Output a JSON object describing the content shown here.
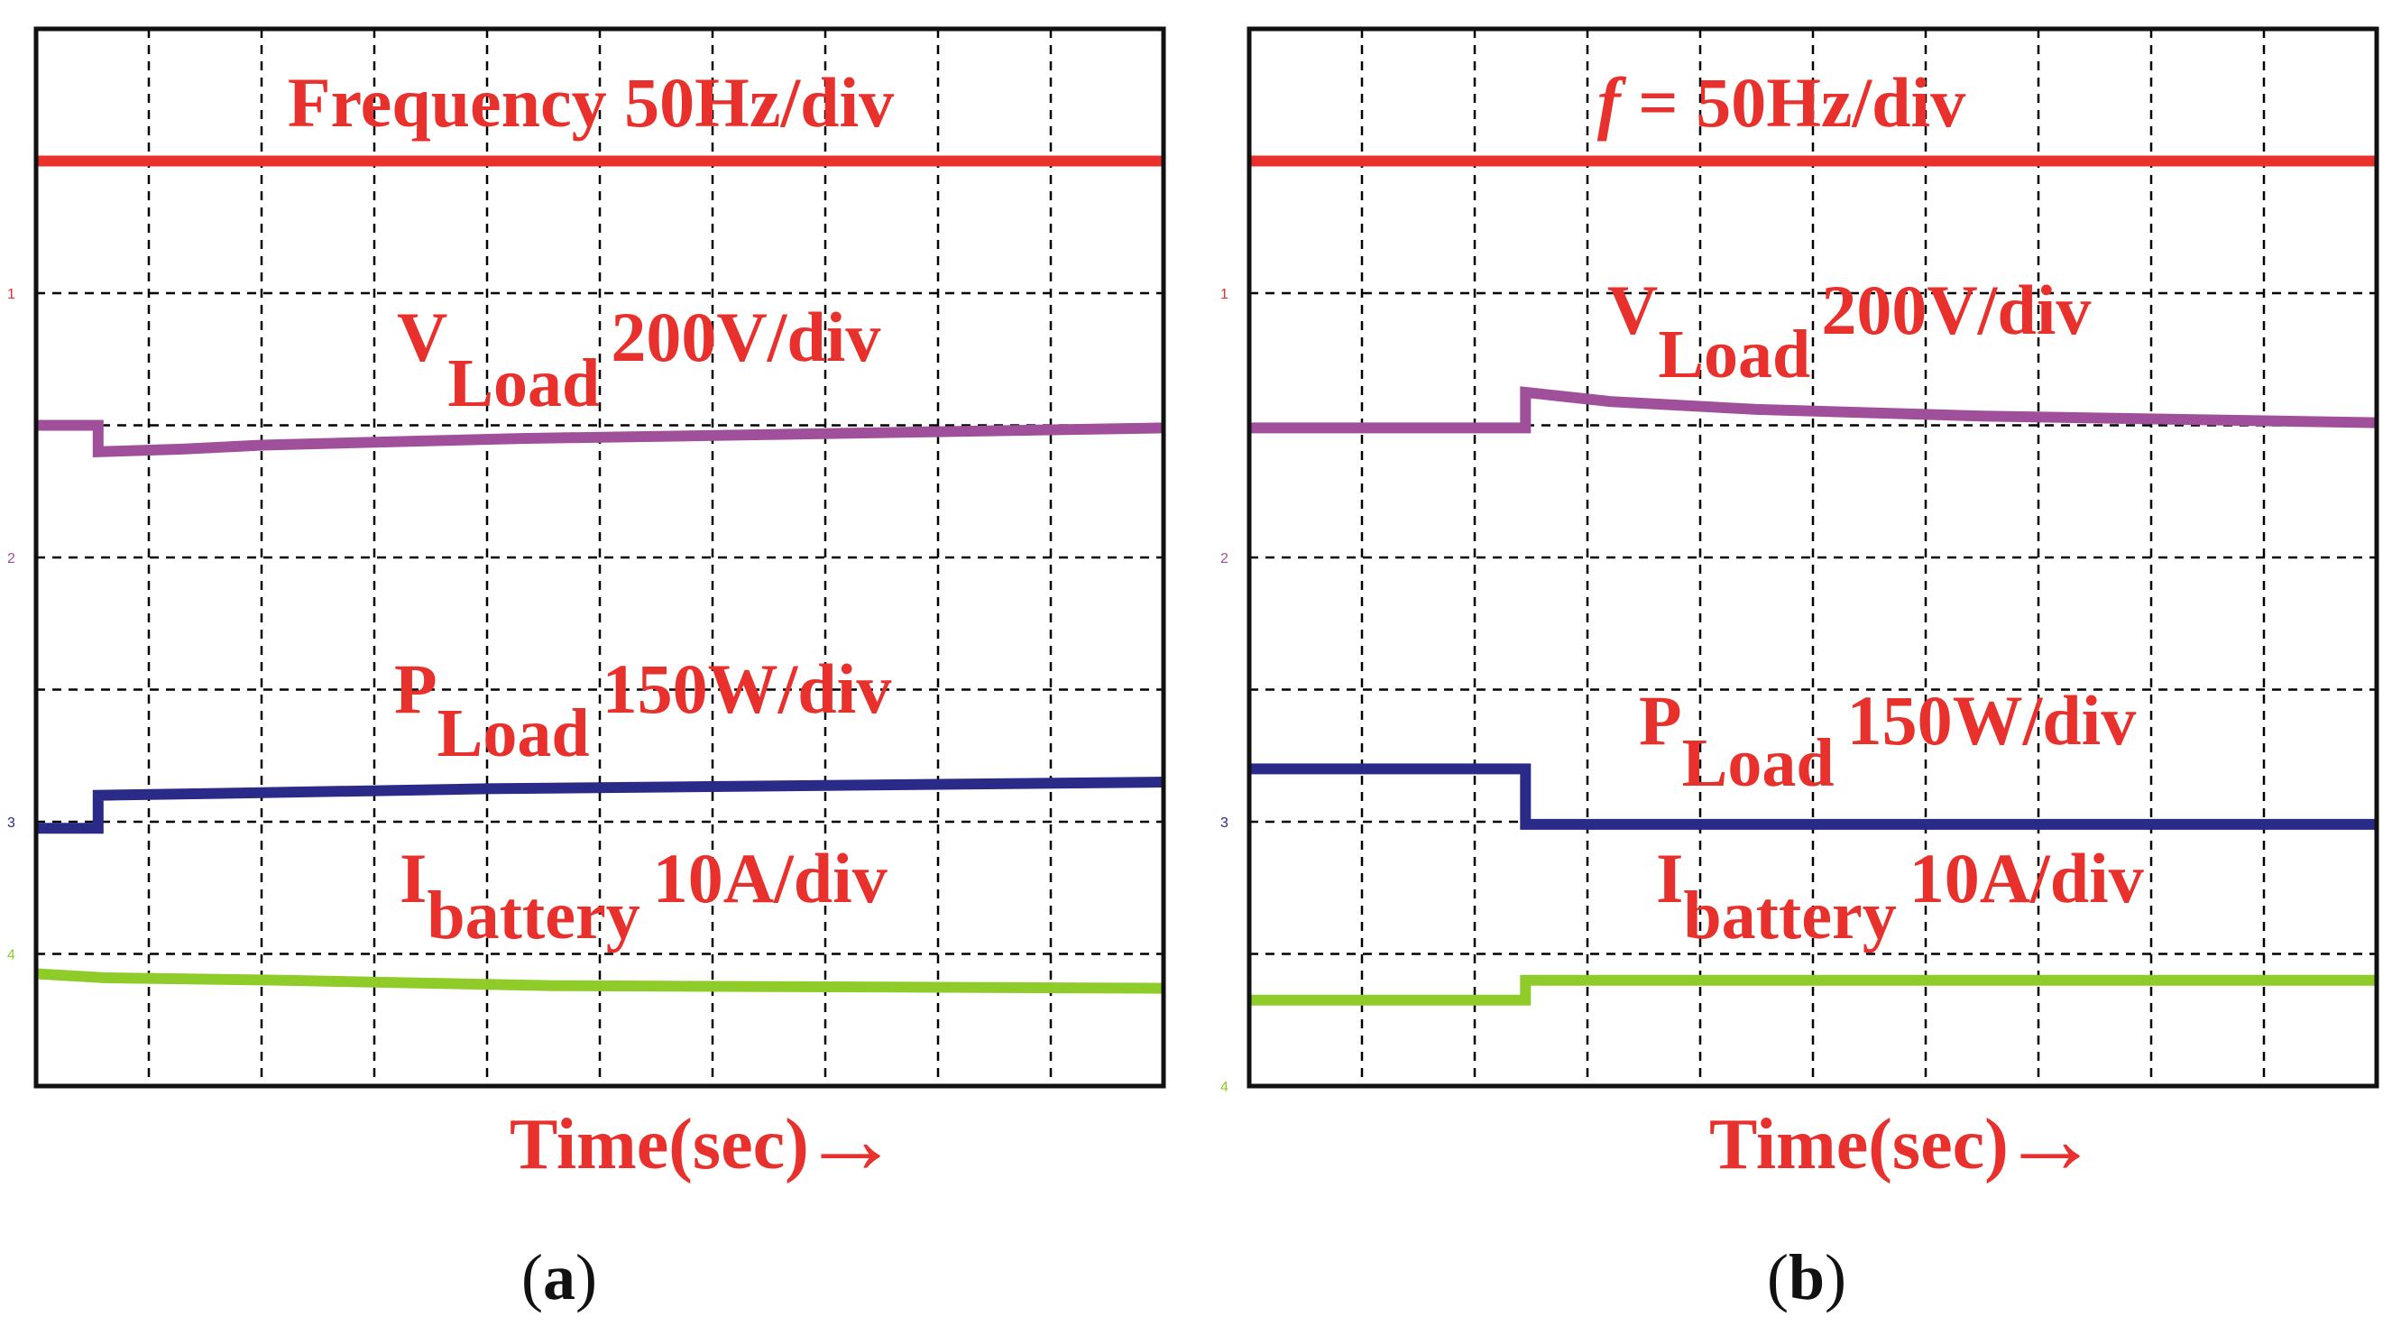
{
  "colors": {
    "frequency": "#e8302c",
    "v_load": "#a0509a",
    "p_load": "#2a2a88",
    "i_battery": "#8fcc2a",
    "grid": "#000000",
    "frame": "#111111",
    "label": "#e8302c",
    "caption": "#111111"
  },
  "chart_data": [
    {
      "type": "line",
      "panel": "a",
      "caption_open": "(",
      "caption_letter": "a",
      "caption_close": ")",
      "xlabel": "Time(sec)",
      "x_arrow": "→",
      "x_divisions": 10,
      "y_divisions": 8,
      "xlim": [
        0,
        10
      ],
      "ylim": [
        0,
        8
      ],
      "channel_markers": [
        "1",
        "2",
        "3",
        "4"
      ],
      "labels": {
        "frequency": "Frequency 50Hz/div",
        "v_load_main": "V",
        "v_load_sub": "Load",
        "v_load_scale": "200V/div",
        "p_load_main": "P",
        "p_load_sub": "Load",
        "p_load_scale": "150W/div",
        "i_battery_main": "I",
        "i_battery_sub": "battery",
        "i_battery_scale": "10A/div"
      },
      "series": [
        {
          "name": "Frequency",
          "x": [
            0,
            10
          ],
          "y": [
            7.0,
            7.0
          ]
        },
        {
          "name": "V_Load",
          "x": [
            0,
            0.55,
            0.55,
            1.3,
            2.0,
            4.3,
            6.5,
            10
          ],
          "y": [
            5.0,
            5.0,
            4.8,
            4.82,
            4.85,
            4.9,
            4.93,
            4.98
          ]
        },
        {
          "name": "P_Load",
          "x": [
            0,
            0.55,
            0.55,
            2.0,
            4.0,
            6.5,
            10
          ],
          "y": [
            1.95,
            1.95,
            2.2,
            2.22,
            2.25,
            2.27,
            2.3
          ]
        },
        {
          "name": "I_battery",
          "x": [
            0,
            0.6,
            2.2,
            4.6,
            10
          ],
          "y": [
            0.85,
            0.82,
            0.8,
            0.76,
            0.74
          ]
        }
      ]
    },
    {
      "type": "line",
      "panel": "b",
      "caption_open": "(",
      "caption_letter": "b",
      "caption_close": ")",
      "xlabel": "Time(sec)",
      "x_arrow": "→",
      "x_divisions": 10,
      "y_divisions": 8,
      "xlim": [
        0,
        10
      ],
      "ylim": [
        0,
        8
      ],
      "channel_markers": [
        "1",
        "2",
        "3",
        "4"
      ],
      "labels": {
        "frequency_f": "f",
        "frequency_rest": " = 50Hz/div",
        "v_load_main": "V",
        "v_load_sub": "Load",
        "v_load_scale": "200V/div",
        "p_load_main": "P",
        "p_load_sub": "Load",
        "p_load_scale": "150W/div",
        "i_battery_main": "I",
        "i_battery_sub": "battery",
        "i_battery_scale": "10A/div"
      },
      "series": [
        {
          "name": "Frequency",
          "x": [
            0,
            10
          ],
          "y": [
            7.0,
            7.0
          ]
        },
        {
          "name": "V_Load",
          "x": [
            0,
            2.45,
            2.45,
            3.2,
            4.5,
            6.5,
            10
          ],
          "y": [
            4.98,
            4.98,
            5.25,
            5.18,
            5.12,
            5.07,
            5.02
          ]
        },
        {
          "name": "P_Load",
          "x": [
            0,
            2.45,
            2.45,
            10
          ],
          "y": [
            2.4,
            2.4,
            1.98,
            1.98
          ]
        },
        {
          "name": "I_battery",
          "x": [
            0,
            2.45,
            2.45,
            10
          ],
          "y": [
            0.65,
            0.65,
            0.8,
            0.8
          ]
        }
      ]
    }
  ]
}
